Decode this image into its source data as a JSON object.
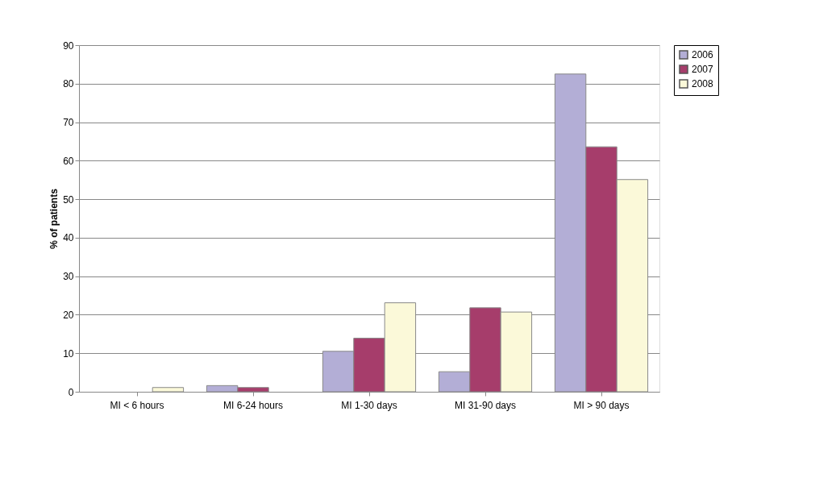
{
  "chart_data": {
    "type": "bar",
    "ylabel": "% of patients",
    "categories": [
      "MI < 6 hours",
      "MI 6-24 hours",
      "MI 1-30 days",
      "MI 31-90 days",
      "MI > 90 days"
    ],
    "series": [
      {
        "name": "2006",
        "color": "#b3aed6",
        "values": [
          null,
          1.6,
          10.5,
          5.2,
          82.5
        ]
      },
      {
        "name": "2007",
        "color": "#a63d6b",
        "values": [
          null,
          1.1,
          13.9,
          21.8,
          63.6
        ]
      },
      {
        "name": "2008",
        "color": "#fbf9d9",
        "values": [
          1.1,
          null,
          23.1,
          20.7,
          55.1
        ]
      }
    ],
    "ylim": [
      0,
      90
    ],
    "yticks": [
      0,
      10,
      20,
      30,
      40,
      50,
      60,
      70,
      80,
      90
    ],
    "grid": "y",
    "legend": "right"
  }
}
